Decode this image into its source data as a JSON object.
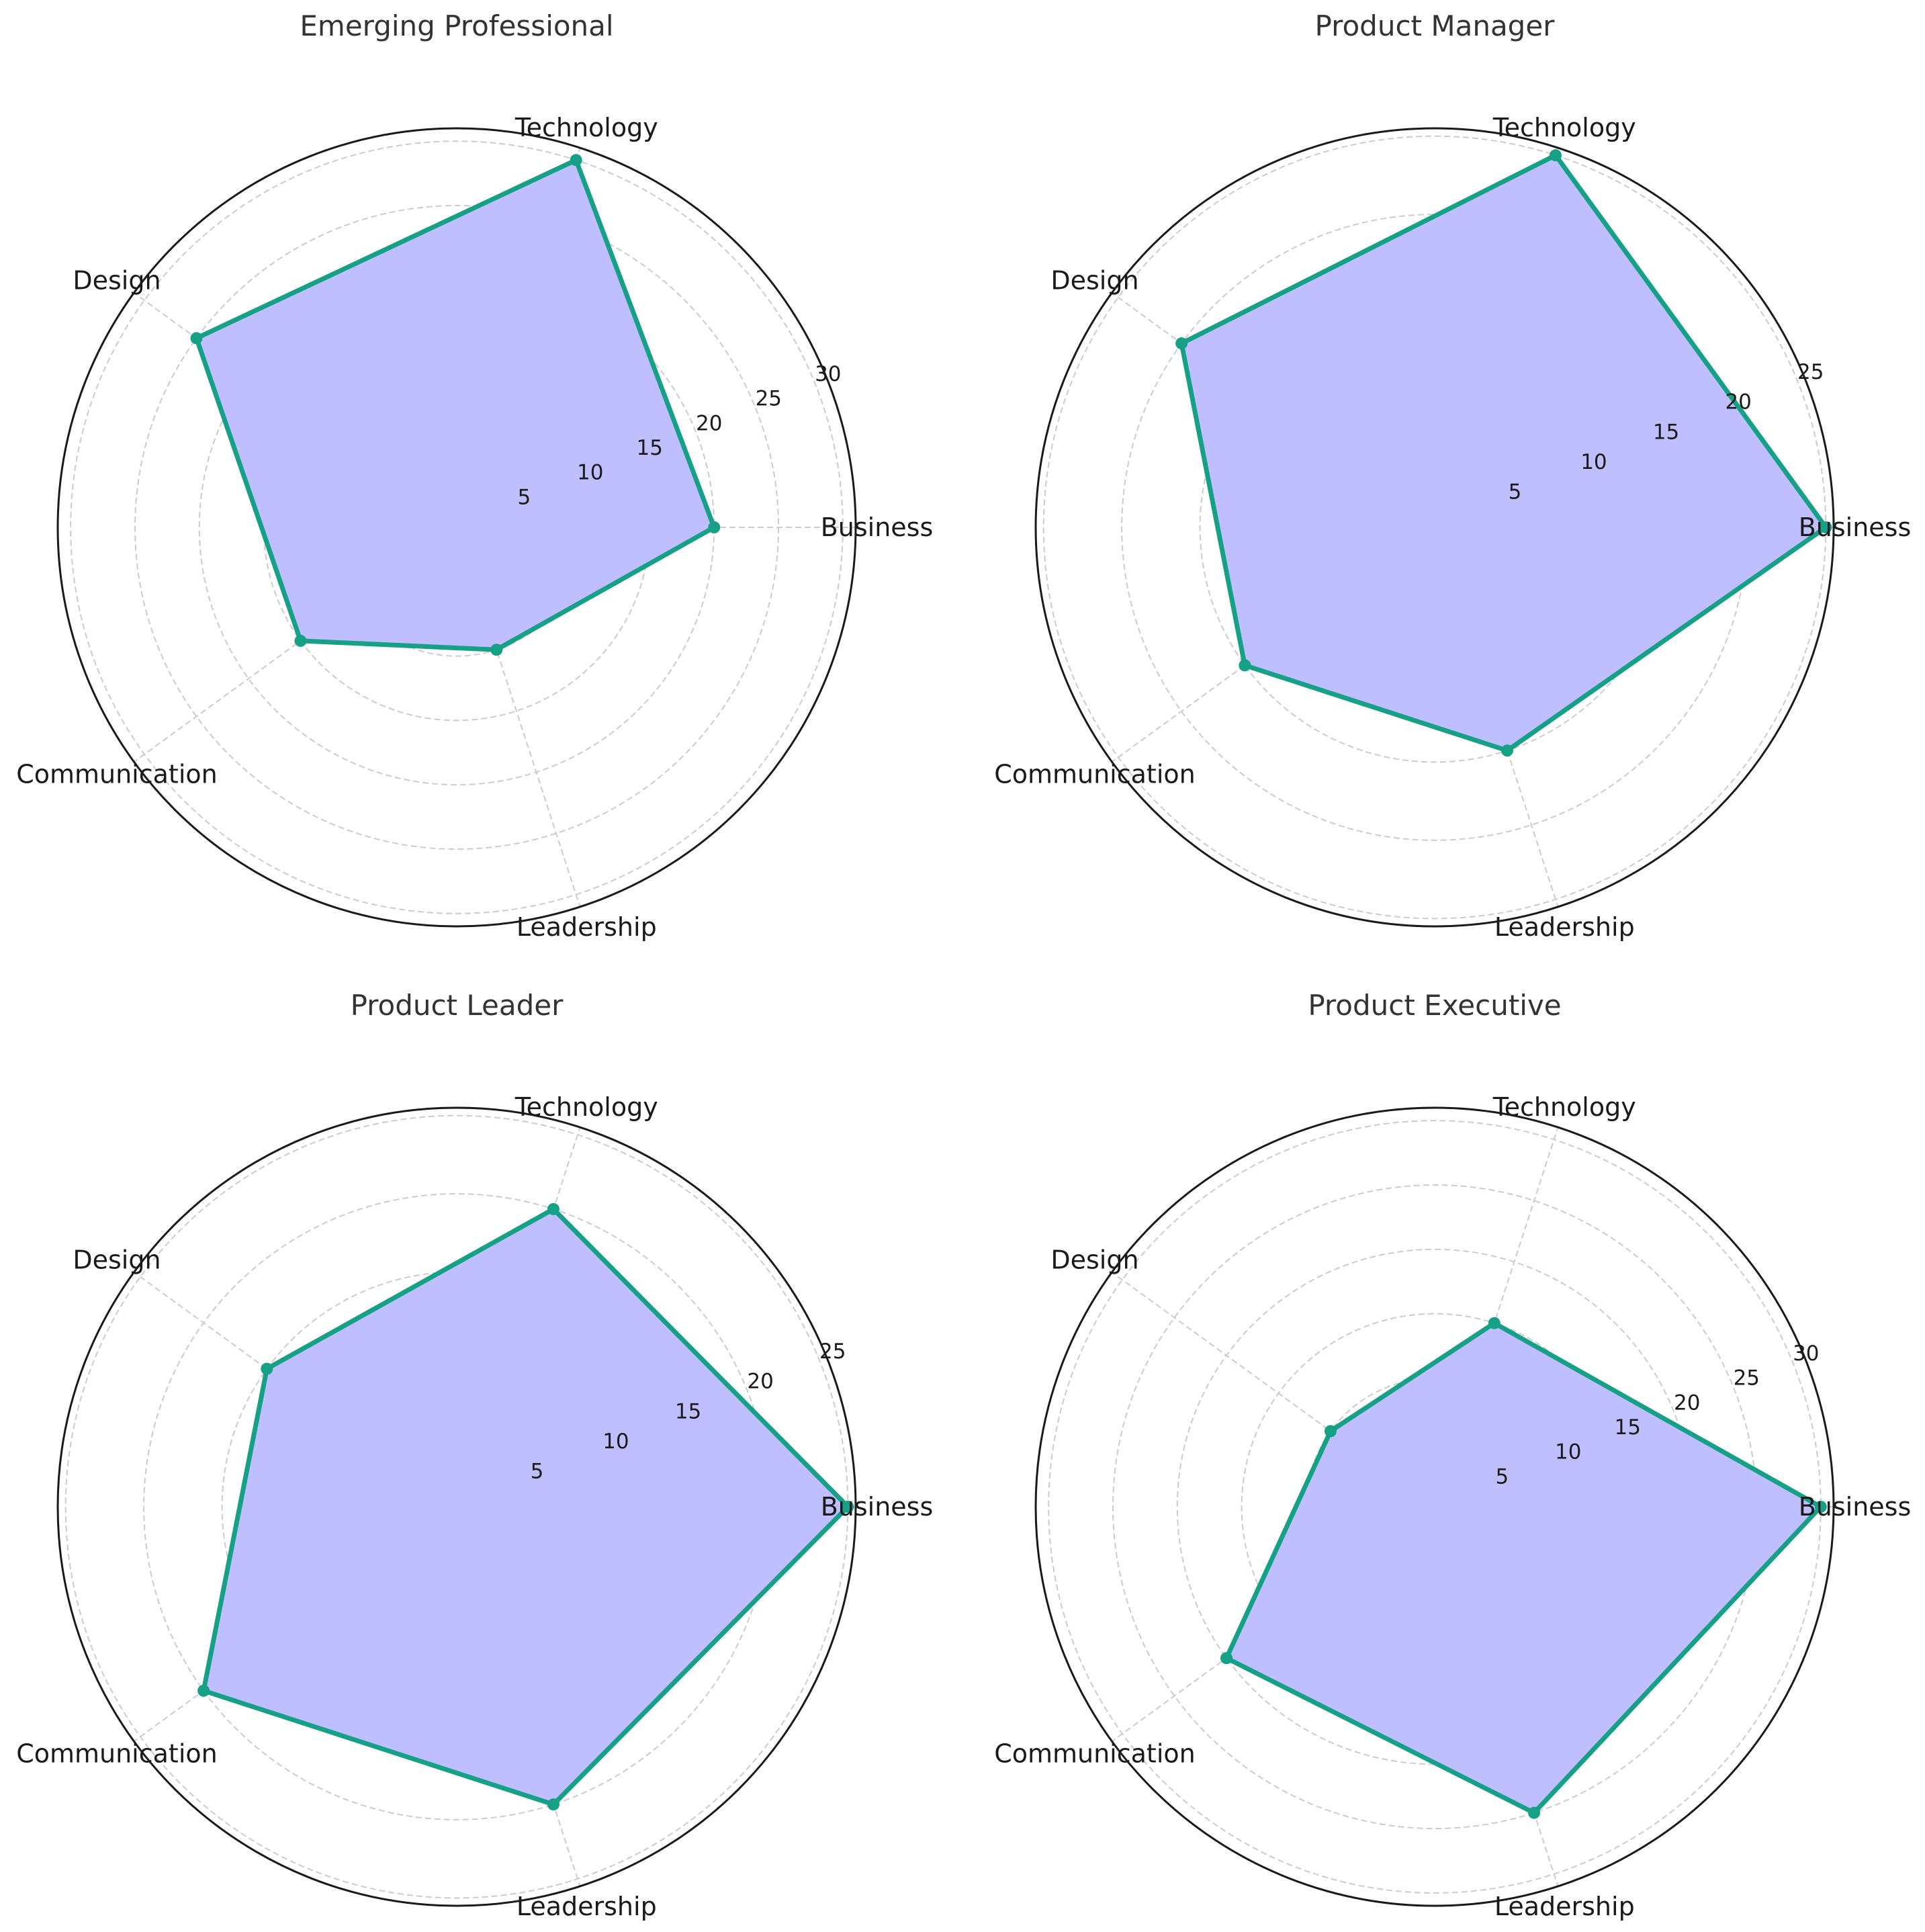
{
  "colors": {
    "line": "#16a085",
    "fill": "#bfbfff",
    "grid": "#cccccc",
    "frame": "#1a1a1a",
    "title": "#333333"
  },
  "chart_data": [
    {
      "type": "radar",
      "title": "Emerging Professional",
      "categories": [
        "Business",
        "Technology",
        "Design",
        "Communication",
        "Leadership"
      ],
      "values": [
        20,
        30,
        25,
        15,
        10
      ],
      "rticks": [
        5,
        10,
        15,
        20,
        25,
        30
      ],
      "rlim": [
        0,
        31
      ],
      "grid": true
    },
    {
      "type": "radar",
      "title": "Product Manager",
      "categories": [
        "Business",
        "Technology",
        "Design",
        "Communication",
        "Leadership"
      ],
      "values": [
        25,
        25,
        20,
        15,
        15
      ],
      "rticks": [
        5,
        10,
        15,
        20,
        25
      ],
      "rlim": [
        0,
        25.5
      ],
      "grid": true
    },
    {
      "type": "radar",
      "title": "Product Leader",
      "categories": [
        "Business",
        "Technology",
        "Design",
        "Communication",
        "Leadership"
      ],
      "values": [
        25,
        20,
        15,
        20,
        20
      ],
      "rticks": [
        5,
        10,
        15,
        20,
        25
      ],
      "rlim": [
        0,
        25.5
      ],
      "grid": true
    },
    {
      "type": "radar",
      "title": "Product Executive",
      "categories": [
        "Business",
        "Technology",
        "Design",
        "Communication",
        "Leadership"
      ],
      "values": [
        30,
        15,
        10,
        20,
        25
      ],
      "rticks": [
        5,
        10,
        15,
        20,
        25,
        30
      ],
      "rlim": [
        0,
        31
      ],
      "grid": true
    }
  ]
}
